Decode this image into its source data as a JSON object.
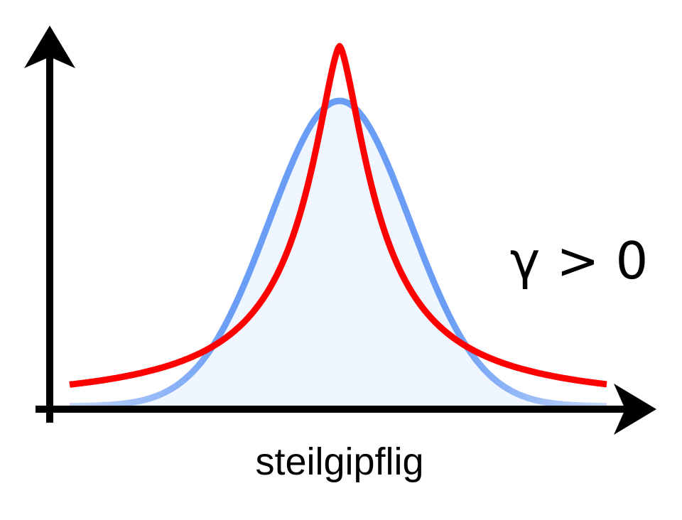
{
  "annotation": "γ > 0",
  "caption": "steilgipflig"
}
